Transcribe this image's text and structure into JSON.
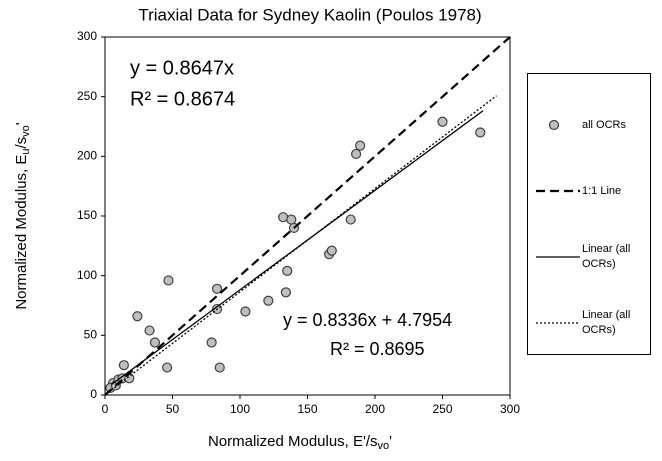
{
  "chart_data": {
    "type": "scatter",
    "title": "Triaxial Data for Sydney Kaolin (Poulos 1978)",
    "x_label": [
      {
        "text": "Normalized Modulus, E'/s"
      },
      {
        "text": "vo",
        "sub": true
      },
      {
        "text": "'"
      }
    ],
    "y_label": [
      {
        "text": "Normalized Modulus, E"
      },
      {
        "text": "u",
        "sub": true
      },
      {
        "text": "/s"
      },
      {
        "text": "vo",
        "sub": true
      },
      {
        "text": "'"
      }
    ],
    "xlim": [
      0,
      300
    ],
    "ylim": [
      0,
      300
    ],
    "xticks": [
      0,
      50,
      100,
      150,
      200,
      250,
      300
    ],
    "yticks": [
      0,
      50,
      100,
      150,
      200,
      250,
      300
    ],
    "grid": false,
    "legend": "right",
    "annotations": [
      "y = 0.8647x",
      "R² = 0.8674",
      "y = 0.8336x + 4.7954",
      "R² = 0.8695"
    ],
    "series": [
      {
        "name": "all OCRs",
        "style": "marker",
        "color": "#bfbfbf",
        "edge": "#404040",
        "x": [
          6,
          4,
          8,
          10,
          14,
          13,
          18,
          24,
          33,
          37,
          46,
          47,
          79,
          83,
          83,
          85,
          104,
          121,
          134,
          135,
          132,
          138,
          140,
          166,
          168,
          182,
          186,
          189,
          250,
          278
        ],
        "values": [
          10,
          6,
          8,
          13,
          25,
          14,
          14,
          66,
          54,
          44,
          23,
          96,
          44,
          72,
          89,
          23,
          70,
          79,
          86,
          104,
          149,
          147,
          140,
          118,
          121,
          147,
          202,
          209,
          229,
          220
        ]
      },
      {
        "name": "1:1 Line",
        "style": "dashed",
        "color": "#000000",
        "x": [
          0,
          300
        ],
        "values": [
          0,
          300
        ]
      },
      {
        "name": "Linear (all OCRs)",
        "style": "solid",
        "color": "#000000",
        "x": [
          5,
          280
        ],
        "values": [
          8.96,
          238.2
        ]
      },
      {
        "name": "Linear (all OCRs)",
        "style": "dotted",
        "color": "#000000",
        "x": [
          0,
          290
        ],
        "values": [
          0,
          250.8
        ]
      }
    ]
  }
}
